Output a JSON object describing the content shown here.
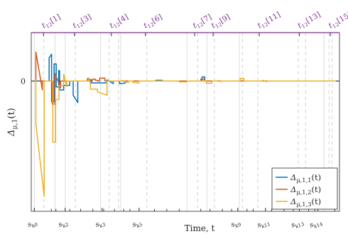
{
  "chart_data": {
    "type": "line",
    "ylabel": "Δ_{μ,1}(t)",
    "xlabel": "Time, t",
    "y_ticks": [
      {
        "value": 0,
        "label": "0"
      }
    ],
    "xlim": [
      0,
      100
    ],
    "ylim": [
      -17.5,
      6.5
    ],
    "grid": false,
    "legend": "bottom-right",
    "top_markers": [
      {
        "label": "t12[1]",
        "x": 4
      },
      {
        "label": "t12[3]",
        "x": 14
      },
      {
        "label": "t12[4]",
        "x": 26
      },
      {
        "label": "t12[6]",
        "x": 37
      },
      {
        "label": "t12[7]",
        "x": 53
      },
      {
        "label": "t12[9]",
        "x": 59
      },
      {
        "label": "t12[11]",
        "x": 74
      },
      {
        "label": "t12[13]",
        "x": 87
      },
      {
        "label": "t12[15]",
        "x": 97
      }
    ],
    "bottom_markers": [
      {
        "label": "s_{k0}",
        "x": 1
      },
      {
        "label": "s_{k2}",
        "x": 11
      },
      {
        "label": "s_{k3}",
        "x": 23
      },
      {
        "label": "s_{k5}",
        "x": 35
      },
      {
        "label": "s_{k9}",
        "x": 67
      },
      {
        "label": "s_{k11}",
        "x": 76
      },
      {
        "label": "s_{k13}",
        "x": 87
      },
      {
        "label": "s_{k14}",
        "x": 93
      }
    ],
    "solid_vlines": [
      1,
      7.7,
      11,
      22.5,
      29,
      50.5,
      57,
      67.5,
      95
    ],
    "dashed_vlines": [
      4.1,
      14.3,
      25.3,
      28.3,
      37.5,
      54,
      59.4,
      68.5,
      73.5,
      86.6,
      89,
      96.6,
      97.6
    ],
    "extra_ticks_x": [
      6.5,
      8,
      12.5,
      16,
      20,
      23.5,
      27,
      30,
      32,
      40,
      44,
      48,
      55,
      58,
      62,
      65,
      70,
      72,
      78,
      82,
      85,
      90,
      92,
      98.5
    ],
    "series": [
      {
        "name": "Δ_{μ,1,1}(t)",
        "color": "#0072BD",
        "points": [
          [
            0.5,
            0
          ],
          [
            5.8,
            0
          ],
          [
            5.8,
            3.1
          ],
          [
            6.6,
            3.6
          ],
          [
            6.6,
            -2.8
          ],
          [
            7.4,
            -2.8
          ],
          [
            7.4,
            2.3
          ],
          [
            8.1,
            2.3
          ],
          [
            8.1,
            -0.8
          ],
          [
            8.9,
            -0.8
          ],
          [
            8.9,
            1.4
          ],
          [
            9.2,
            1.4
          ],
          [
            9.2,
            -1.2
          ],
          [
            10.5,
            -1.2
          ],
          [
            10.5,
            -0.6
          ],
          [
            12.5,
            -0.6
          ],
          [
            12.5,
            0
          ],
          [
            13.6,
            0
          ],
          [
            13.6,
            -1.9
          ],
          [
            15.1,
            -2.9
          ],
          [
            15.1,
            0
          ],
          [
            18.3,
            0
          ],
          [
            18.3,
            0.35
          ],
          [
            19.5,
            0.1
          ],
          [
            19.5,
            -0.25
          ],
          [
            24.6,
            -0.25
          ],
          [
            24.6,
            0.15
          ],
          [
            26.6,
            -0.35
          ],
          [
            26.6,
            0
          ],
          [
            28.6,
            0
          ],
          [
            28.6,
            -0.35
          ],
          [
            30.4,
            -0.3
          ],
          [
            30.4,
            0
          ],
          [
            40.4,
            0
          ],
          [
            40.4,
            0.1
          ],
          [
            42.5,
            0.1
          ],
          [
            42.5,
            0
          ],
          [
            55.4,
            0
          ],
          [
            55.4,
            0.55
          ],
          [
            56.3,
            0.55
          ],
          [
            56.3,
            0
          ],
          [
            99.5,
            0
          ]
        ]
      },
      {
        "name": "Δ_{μ,1,2}(t)",
        "color": "#D95319",
        "points": [
          [
            0.5,
            0
          ],
          [
            1.5,
            0
          ],
          [
            1.5,
            3.9
          ],
          [
            3.6,
            -1.2
          ],
          [
            3.6,
            0
          ],
          [
            6.8,
            0
          ],
          [
            6.8,
            -3.1
          ],
          [
            7.7,
            -3.1
          ],
          [
            7.7,
            1.0
          ],
          [
            9.5,
            -0.9
          ],
          [
            9.5,
            0
          ],
          [
            19.8,
            0
          ],
          [
            19.8,
            0.25
          ],
          [
            20.8,
            0.25
          ],
          [
            20.8,
            0.1
          ],
          [
            21.5,
            0.1
          ],
          [
            21.5,
            0
          ],
          [
            22.2,
            0
          ],
          [
            22.2,
            0.38
          ],
          [
            23.9,
            0.38
          ],
          [
            23.9,
            0
          ],
          [
            55.0,
            0
          ],
          [
            55.0,
            0.25
          ],
          [
            56.2,
            0.25
          ],
          [
            56.2,
            0
          ],
          [
            99.5,
            0
          ]
        ]
      },
      {
        "name": "Δ_{μ,1,3}(t)",
        "color": "#EDB120",
        "points": [
          [
            0.5,
            0
          ],
          [
            1.5,
            0
          ],
          [
            1.5,
            -5.8
          ],
          [
            4.2,
            -15.5
          ],
          [
            4.2,
            0
          ],
          [
            7.0,
            0
          ],
          [
            7.0,
            -8.2
          ],
          [
            7.9,
            -8.2
          ],
          [
            7.9,
            -2.5
          ],
          [
            9.0,
            -2.5
          ],
          [
            9.0,
            -0.6
          ],
          [
            10.5,
            -0.6
          ],
          [
            10.5,
            0.9
          ],
          [
            11.5,
            -0.7
          ],
          [
            11.5,
            0
          ],
          [
            18.6,
            0
          ],
          [
            18.6,
            0.45
          ],
          [
            19.2,
            -0.4
          ],
          [
            19.2,
            -1.1
          ],
          [
            21.5,
            -1.1
          ],
          [
            21.5,
            -1.45
          ],
          [
            24.5,
            -1.9
          ],
          [
            24.6,
            -1.9
          ],
          [
            24.6,
            0
          ],
          [
            29.5,
            0
          ],
          [
            29.5,
            0.1
          ],
          [
            31.5,
            -0.25
          ],
          [
            31.5,
            0
          ],
          [
            33,
            0
          ],
          [
            33,
            -0.2
          ],
          [
            35,
            -0.25
          ],
          [
            35,
            0
          ],
          [
            48,
            0
          ],
          [
            48,
            -0.12
          ],
          [
            50.5,
            -0.12
          ],
          [
            50.5,
            0
          ],
          [
            56.8,
            0
          ],
          [
            56.8,
            -0.3
          ],
          [
            58.6,
            -0.3
          ],
          [
            58.6,
            0
          ],
          [
            60.5,
            0
          ],
          [
            60.5,
            0.1
          ],
          [
            61.5,
            -0.1
          ],
          [
            61.5,
            0
          ],
          [
            67.8,
            0
          ],
          [
            67.8,
            0.35
          ],
          [
            69,
            0.35
          ],
          [
            69,
            0
          ],
          [
            75,
            0
          ],
          [
            75,
            0.1
          ],
          [
            76.5,
            -0.1
          ],
          [
            76.5,
            0
          ],
          [
            99.5,
            0
          ]
        ]
      }
    ]
  }
}
